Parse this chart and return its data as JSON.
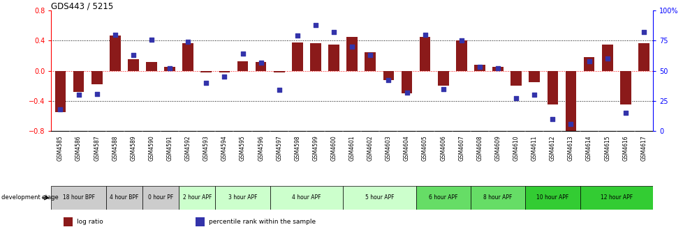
{
  "title": "GDS443 / 5215",
  "samples": [
    "GSM4585",
    "GSM4586",
    "GSM4587",
    "GSM4588",
    "GSM4589",
    "GSM4590",
    "GSM4591",
    "GSM4592",
    "GSM4593",
    "GSM4594",
    "GSM4595",
    "GSM4596",
    "GSM4597",
    "GSM4598",
    "GSM4599",
    "GSM4600",
    "GSM4601",
    "GSM4602",
    "GSM4603",
    "GSM4604",
    "GSM4605",
    "GSM4606",
    "GSM4607",
    "GSM4608",
    "GSM4609",
    "GSM4610",
    "GSM4611",
    "GSM4612",
    "GSM4613",
    "GSM4614",
    "GSM4615",
    "GSM4616",
    "GSM4617"
  ],
  "log_ratio": [
    -0.55,
    -0.28,
    -0.18,
    0.47,
    0.15,
    0.12,
    0.05,
    0.37,
    -0.02,
    -0.02,
    0.13,
    0.12,
    -0.02,
    0.38,
    0.37,
    0.35,
    0.45,
    0.25,
    -0.12,
    -0.3,
    0.45,
    -0.2,
    0.4,
    0.08,
    0.05,
    -0.2,
    -0.15,
    -0.45,
    -0.8,
    0.18,
    0.35,
    -0.45,
    0.37
  ],
  "percentile": [
    18,
    30,
    31,
    80,
    63,
    76,
    52,
    74,
    40,
    45,
    64,
    57,
    34,
    79,
    88,
    82,
    70,
    63,
    42,
    32,
    80,
    35,
    75,
    53,
    52,
    27,
    30,
    10,
    6,
    58,
    60,
    15,
    82
  ],
  "stage_groups": [
    {
      "label": "18 hour BPF",
      "start": 0,
      "end": 3,
      "color": "#cccccc"
    },
    {
      "label": "4 hour BPF",
      "start": 3,
      "end": 5,
      "color": "#cccccc"
    },
    {
      "label": "0 hour PF",
      "start": 5,
      "end": 7,
      "color": "#cccccc"
    },
    {
      "label": "2 hour APF",
      "start": 7,
      "end": 9,
      "color": "#ccffcc"
    },
    {
      "label": "3 hour APF",
      "start": 9,
      "end": 12,
      "color": "#ccffcc"
    },
    {
      "label": "4 hour APF",
      "start": 12,
      "end": 16,
      "color": "#ccffcc"
    },
    {
      "label": "5 hour APF",
      "start": 16,
      "end": 20,
      "color": "#ccffcc"
    },
    {
      "label": "6 hour APF",
      "start": 20,
      "end": 23,
      "color": "#66dd66"
    },
    {
      "label": "8 hour APF",
      "start": 23,
      "end": 26,
      "color": "#66dd66"
    },
    {
      "label": "10 hour APF",
      "start": 26,
      "end": 29,
      "color": "#33cc33"
    },
    {
      "label": "12 hour APF",
      "start": 29,
      "end": 33,
      "color": "#33cc33"
    }
  ],
  "bar_color": "#8B1A1A",
  "dot_color": "#3333aa",
  "ylim_left": [
    -0.8,
    0.8
  ],
  "ylim_right": [
    0,
    100
  ],
  "yticks_left": [
    -0.8,
    -0.4,
    0.0,
    0.4,
    0.8
  ],
  "yticks_right": [
    0,
    25,
    50,
    75,
    100
  ],
  "ytick_labels_right": [
    "0",
    "25",
    "50",
    "75",
    "100%"
  ],
  "hline_dotted": [
    -0.4,
    0.4
  ],
  "hline_red_dotted": [
    0.0
  ],
  "background_color": "#ffffff",
  "tick_bg_color": "#cccccc"
}
